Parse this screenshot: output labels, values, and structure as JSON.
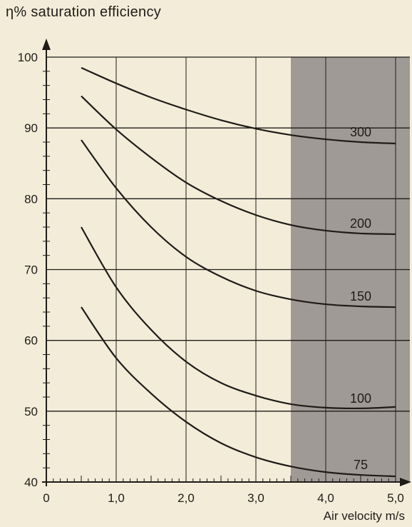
{
  "chart_data": {
    "type": "line",
    "title": "η% saturation efficiency",
    "xlabel": "Air velocity m/s",
    "ylabel": "",
    "xlim": [
      0,
      5
    ],
    "ylim": [
      40,
      100
    ],
    "x_ticks": [
      "0",
      "1,0",
      "2,0",
      "3,0",
      "4,0",
      "5,0"
    ],
    "y_ticks": [
      "40",
      "50",
      "60",
      "70",
      "80",
      "90",
      "100"
    ],
    "grid": true,
    "shaded_region_x": [
      3.5,
      5.0
    ],
    "x": [
      0.5,
      1.0,
      1.5,
      2.0,
      2.5,
      3.0,
      3.5,
      4.0,
      4.5,
      5.0
    ],
    "series": [
      {
        "name": "300",
        "values": [
          98.5,
          96.3,
          94.3,
          92.6,
          91.1,
          89.9,
          89.0,
          88.4,
          88.0,
          87.8
        ]
      },
      {
        "name": "200",
        "values": [
          94.5,
          89.8,
          85.8,
          82.3,
          79.7,
          77.7,
          76.3,
          75.5,
          75.1,
          75.0
        ]
      },
      {
        "name": "150",
        "values": [
          88.3,
          81.5,
          76.0,
          71.8,
          69.0,
          67.0,
          65.8,
          65.1,
          64.8,
          64.7
        ]
      },
      {
        "name": "100",
        "values": [
          76.0,
          67.5,
          61.5,
          57.0,
          54.0,
          52.2,
          51.0,
          50.5,
          50.4,
          50.6
        ]
      },
      {
        "name": "75",
        "values": [
          64.7,
          57.5,
          52.5,
          48.5,
          45.5,
          43.5,
          42.2,
          41.4,
          41.0,
          40.8
        ]
      }
    ]
  },
  "colors": {
    "background": "#f3ecd9",
    "line": "#1f1c18",
    "shade": "#8f8c88"
  }
}
